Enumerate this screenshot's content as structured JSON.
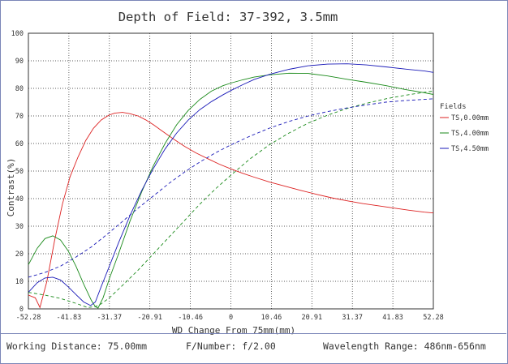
{
  "chart_data": {
    "type": "line",
    "title": "Depth of Field: 37-392, 3.5mm",
    "xlabel": "WD Change From 75mm(mm)",
    "ylabel": "Contrast(%)",
    "xlim": [
      -52.28,
      52.28
    ],
    "ylim": [
      0,
      100
    ],
    "x_ticks": [
      "-52.28",
      "-41.83",
      "-31.37",
      "-20.91",
      "-10.46",
      "0",
      "10.46",
      "20.91",
      "31.37",
      "41.83",
      "52.28"
    ],
    "y_ticks": [
      "0",
      "10",
      "20",
      "30",
      "40",
      "50",
      "60",
      "70",
      "80",
      "90",
      "100"
    ],
    "grid": true,
    "legend_title": "Fields",
    "legend_position": "right",
    "series": [
      {
        "name": "TS,0.00mm",
        "color": "#dd2222",
        "dash": false,
        "x": [
          -52.28,
          -50.5,
          -49.3,
          -47.5,
          -45.5,
          -43.5,
          -41.5,
          -39.5,
          -37.5,
          -35.5,
          -33.5,
          -31.5,
          -30,
          -28,
          -26,
          -24,
          -22,
          -20,
          -18,
          -15,
          -12,
          -9,
          -6,
          -3,
          0,
          3,
          6,
          10,
          14,
          18,
          22,
          26,
          30,
          34,
          38,
          42,
          46,
          50,
          52.28
        ],
        "y": [
          5,
          4,
          0.5,
          10,
          25,
          38,
          48,
          55,
          61,
          65.5,
          68.5,
          70.3,
          71,
          71.3,
          70.8,
          70,
          68.6,
          66.8,
          64.8,
          61.8,
          59,
          56.6,
          54.5,
          52.5,
          50.8,
          49.2,
          47.8,
          46,
          44.5,
          43,
          41.6,
          40.3,
          39.2,
          38.2,
          37.4,
          36.6,
          35.8,
          35.1,
          34.8
        ]
      },
      {
        "name": "TS,4.00mm",
        "color": "#1a8a1a",
        "dash": false,
        "x": [
          -52.28,
          -50,
          -48,
          -46,
          -44,
          -42,
          -40,
          -38,
          -36,
          -35,
          -34.3,
          -33,
          -31.37,
          -29,
          -26,
          -23,
          -20,
          -17,
          -14,
          -11,
          -8,
          -5,
          -2,
          0,
          3,
          6,
          10,
          15,
          20,
          25,
          30,
          35,
          40,
          45,
          50,
          52.28
        ],
        "y": [
          16,
          22,
          25.5,
          26.5,
          25,
          21,
          15.5,
          9,
          3,
          0.8,
          0.3,
          4,
          11,
          20,
          32,
          42.5,
          52,
          60,
          66.8,
          72,
          76,
          79,
          81,
          81.9,
          83.1,
          84.1,
          84.9,
          85.5,
          85.4,
          84.5,
          83.3,
          82.2,
          81,
          79.6,
          78.4,
          77.8
        ]
      },
      {
        "name": "TS,4.50mm",
        "color": "#1a1ab8",
        "dash": false,
        "x": [
          -52.28,
          -50,
          -48,
          -46,
          -44,
          -42,
          -40,
          -38,
          -36.2,
          -35,
          -33.5,
          -31.37,
          -29,
          -26,
          -23,
          -20,
          -17,
          -14,
          -11,
          -8,
          -5,
          -2,
          0,
          3,
          6,
          10,
          15,
          20,
          25,
          30,
          35,
          40,
          45,
          50,
          52.28
        ],
        "y": [
          6,
          9.5,
          11.2,
          11.5,
          10.5,
          8,
          5.2,
          2.5,
          1.2,
          2.5,
          8,
          15.5,
          24,
          34,
          43,
          51,
          58,
          63.8,
          68.5,
          72.3,
          75.2,
          77.7,
          79.2,
          81.3,
          83.2,
          85.1,
          86.9,
          88.2,
          88.8,
          88.9,
          88.5,
          87.8,
          87,
          86.3,
          85.8
        ]
      },
      {
        "name": "TS,0.00mm (dashed)",
        "color": "#dd2222",
        "dash": true,
        "x": [],
        "y": []
      },
      {
        "name": "TS,4.00mm (dashed)",
        "color": "#1a8a1a",
        "dash": true,
        "x": [
          -52.28,
          -48,
          -44,
          -40,
          -37,
          -35,
          -33.5,
          -31.37,
          -28,
          -24,
          -20,
          -16,
          -12,
          -8,
          -4,
          0,
          5,
          10,
          15,
          20,
          25,
          30,
          35,
          40,
          45,
          50,
          52.28
        ],
        "y": [
          6,
          5,
          3.8,
          2,
          0.5,
          0.8,
          1.8,
          4,
          8.5,
          14,
          20,
          26,
          32,
          38,
          43.5,
          48.5,
          54.5,
          59.6,
          63.8,
          67.4,
          70.3,
          72.7,
          74.6,
          76.2,
          77.5,
          78.6,
          79
        ]
      },
      {
        "name": "TS,4.50mm (dashed)",
        "color": "#1a1ab8",
        "dash": true,
        "x": [
          -52.28,
          -48,
          -44,
          -40,
          -36,
          -32,
          -28,
          -24,
          -20,
          -16,
          -12,
          -8,
          -4,
          0,
          5,
          10,
          15,
          20,
          25,
          30,
          35,
          40,
          45,
          50,
          52.28
        ],
        "y": [
          11.5,
          13.2,
          15.5,
          18.8,
          22.5,
          27,
          31.7,
          36.5,
          41,
          45.5,
          49.6,
          53.3,
          56.6,
          59.5,
          62.7,
          65.6,
          68,
          70,
          71.6,
          72.9,
          74,
          75,
          75.6,
          76,
          76.2
        ]
      }
    ]
  },
  "footer": {
    "working_distance": "Working Distance: 75.00mm",
    "f_number": "F/Number: f/2.00",
    "wavelength": "Wavelength Range: 486nm-656nm"
  }
}
